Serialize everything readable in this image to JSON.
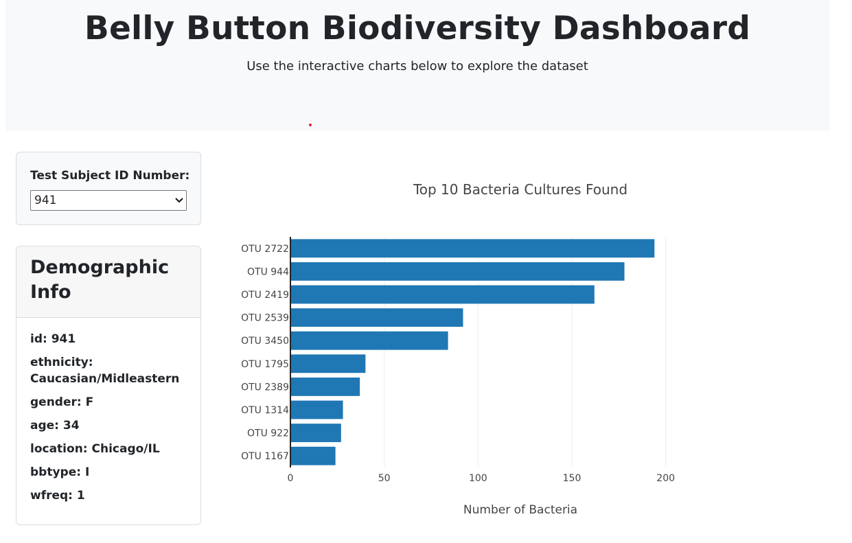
{
  "header": {
    "title": "Belly Button Biodiversity Dashboard",
    "subtitle": "Use the interactive charts below to explore the dataset"
  },
  "selector": {
    "label": "Test Subject ID Number:",
    "selected": "941"
  },
  "demographics": {
    "title": "Demographic Info",
    "rows": [
      "id: 941",
      "ethnicity: Caucasian/Midleastern",
      "gender: F",
      "age: 34",
      "location: Chicago/IL",
      "bbtype: I",
      "wfreq: 1"
    ]
  },
  "colors": {
    "bar": "#1f77b4",
    "header_bg": "#f8f9fa",
    "grid": "#eeeeee"
  },
  "chart_data": {
    "type": "bar",
    "orientation": "horizontal",
    "title": "Top 10 Bacteria Cultures Found",
    "xlabel": "Number of Bacteria",
    "ylabel": "",
    "categories": [
      "OTU 2722",
      "OTU 944",
      "OTU 2419",
      "OTU 2539",
      "OTU 3450",
      "OTU 1795",
      "OTU 2389",
      "OTU 1314",
      "OTU 922",
      "OTU 1167"
    ],
    "values": [
      194,
      178,
      162,
      92,
      84,
      40,
      37,
      28,
      27,
      24
    ],
    "xlim": [
      0,
      240
    ],
    "xticks": [
      0,
      50,
      100,
      150,
      200
    ],
    "grid": true
  }
}
